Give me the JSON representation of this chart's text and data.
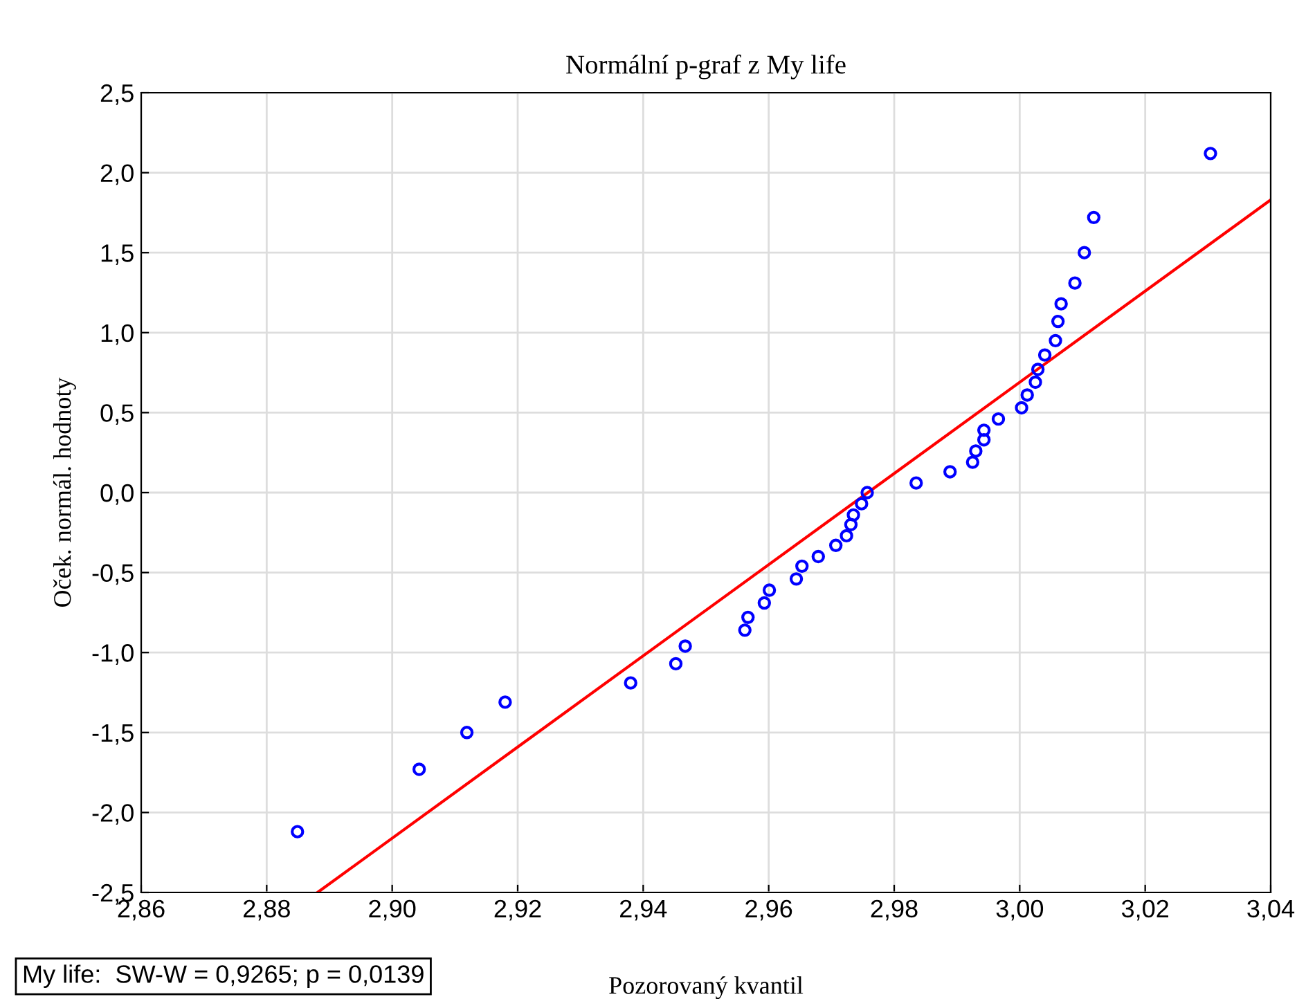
{
  "chart_data": {
    "type": "scatter",
    "title": "Normální p-graf z My life",
    "xlabel": "Pozorovaný kvantil",
    "ylabel": "Oček. normál. hodnoty",
    "annotations": [
      "My life:  SW-W = 0,9265; p = 0,0139"
    ],
    "series": [
      {
        "color": "#0000ff",
        "marker": "circle",
        "x": [
          2.8849,
          2.9043,
          2.9119,
          2.918,
          2.938,
          2.9452,
          2.9467,
          2.9562,
          2.9567,
          2.9593,
          2.9601,
          2.9644,
          2.9653,
          2.9679,
          2.9707,
          2.9724,
          2.9731,
          2.9735,
          2.9748,
          2.9757,
          2.9835,
          2.9889,
          2.9925,
          2.993,
          2.9943,
          2.9943,
          2.9966,
          3.0003,
          3.0012,
          3.0025,
          3.0029,
          3.004,
          3.0057,
          3.0061,
          3.0066,
          3.0088,
          3.0103,
          3.0118,
          3.0304
        ],
        "values": [
          -2.12,
          -1.73,
          -1.5,
          -1.31,
          -1.19,
          -1.07,
          -0.96,
          -0.86,
          -0.78,
          -0.69,
          -0.61,
          -0.54,
          -0.46,
          -0.4,
          -0.33,
          -0.27,
          -0.2,
          -0.14,
          -0.07,
          0.0,
          0.06,
          0.13,
          0.19,
          0.26,
          0.33,
          0.39,
          0.46,
          0.53,
          0.61,
          0.69,
          0.77,
          0.86,
          0.95,
          1.07,
          1.18,
          1.31,
          1.5,
          1.72,
          2.12
        ]
      },
      {
        "type": "line",
        "color": "#ff0000",
        "line_style": "solid",
        "x": [
          2.8881,
          3.04
        ],
        "values": [
          -2.5,
          1.83
        ]
      }
    ],
    "xlim": [
      2.86,
      3.04
    ],
    "ylim": [
      -2.5,
      2.5
    ],
    "xticks": [
      {
        "value": 2.86,
        "label": "2,86"
      },
      {
        "value": 2.88,
        "label": "2,88"
      },
      {
        "value": 2.9,
        "label": "2,90"
      },
      {
        "value": 2.92,
        "label": "2,92"
      },
      {
        "value": 2.94,
        "label": "2,94"
      },
      {
        "value": 2.96,
        "label": "2,96"
      },
      {
        "value": 2.98,
        "label": "2,98"
      },
      {
        "value": 3.0,
        "label": "3,00"
      },
      {
        "value": 3.02,
        "label": "3,02"
      },
      {
        "value": 3.04,
        "label": "3,04"
      }
    ],
    "yticks": [
      {
        "value": -2.5,
        "label": "-2,5"
      },
      {
        "value": -2.0,
        "label": "-2,0"
      },
      {
        "value": -1.5,
        "label": "-1,5"
      },
      {
        "value": -1.0,
        "label": "-1,0"
      },
      {
        "value": -0.5,
        "label": "-0,5"
      },
      {
        "value": 0.0,
        "label": "0,0"
      },
      {
        "value": 0.5,
        "label": "0,5"
      },
      {
        "value": 1.0,
        "label": "1,0"
      },
      {
        "value": 1.5,
        "label": "1,5"
      },
      {
        "value": 2.0,
        "label": "2,0"
      },
      {
        "value": 2.5,
        "label": "2,5"
      }
    ],
    "grid": true,
    "legend": false
  }
}
